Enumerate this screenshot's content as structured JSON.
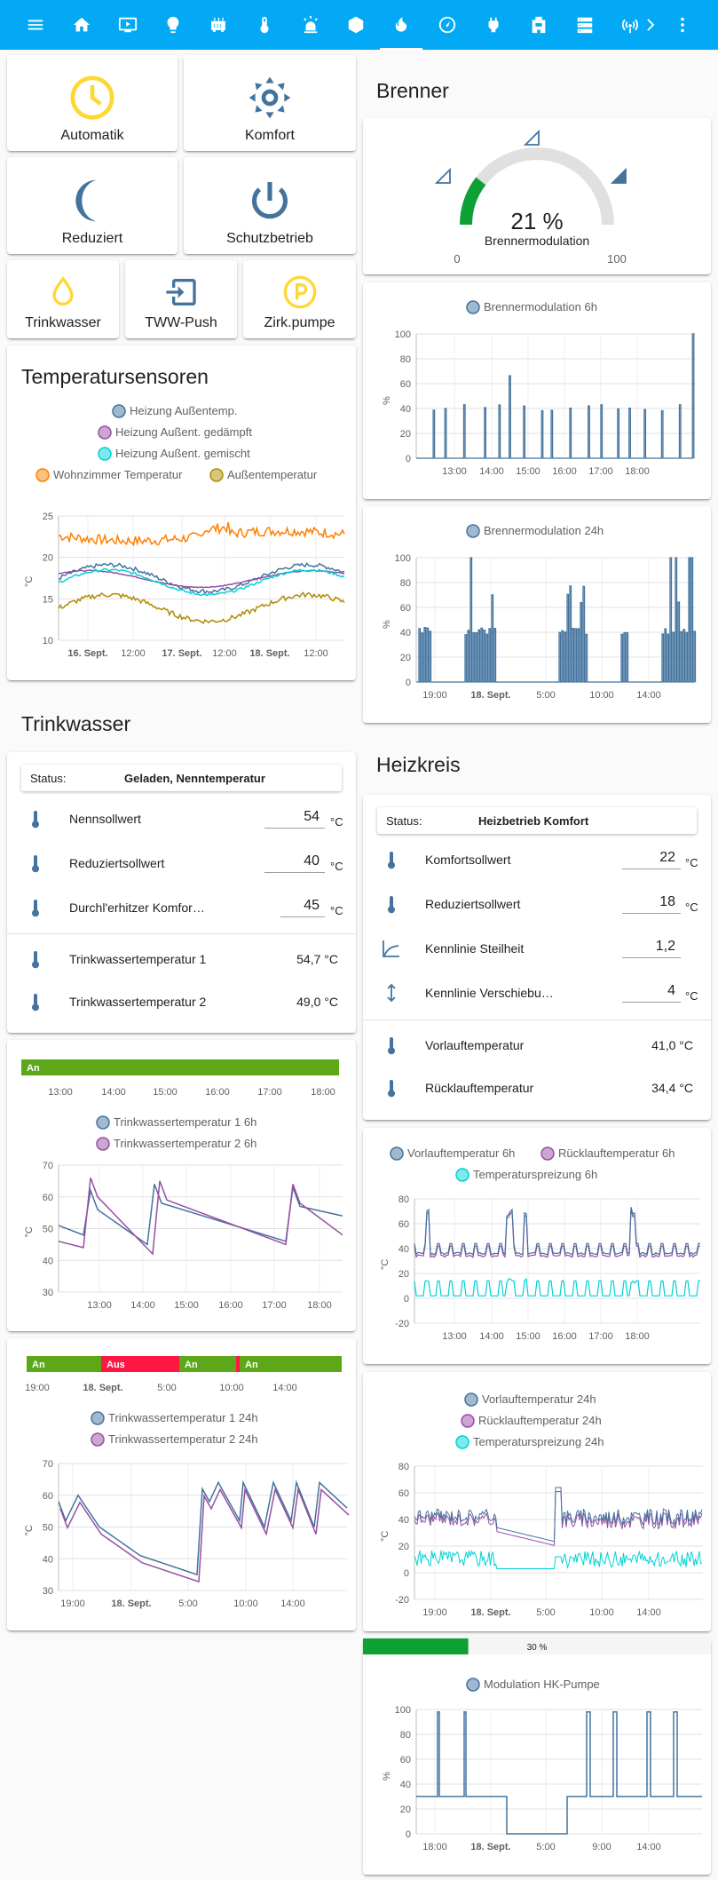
{
  "topbar": {
    "icons": [
      "menu-icon",
      "home-icon",
      "tv-icon",
      "lightbulb-icon",
      "radiator-icon",
      "thermometer-icon",
      "alarm-light-icon",
      "cube-icon",
      "fire-icon",
      "gauge-icon",
      "power-plug-icon",
      "water-pump-icon",
      "server-icon",
      "antenna-icon",
      "chevron-right-icon",
      "more-vert-icon"
    ],
    "accent": "#03a9f4"
  },
  "modes": [
    {
      "label": "Automatik",
      "icon": "clock-icon",
      "color": "#fdd835"
    },
    {
      "label": "Komfort",
      "icon": "sun-icon",
      "color": "#44739e"
    },
    {
      "label": "Reduziert",
      "icon": "moon-icon",
      "color": "#44739e"
    },
    {
      "label": "Schutzbetrieb",
      "icon": "power-icon",
      "color": "#44739e"
    }
  ],
  "water_buttons": [
    {
      "label": "Trinkwasser",
      "icon": "water-drop-icon"
    },
    {
      "label": "TWW-Push",
      "icon": "import-icon"
    },
    {
      "label": "Zirk.pumpe",
      "icon": "parking-icon"
    }
  ],
  "temp_sensors": {
    "title": "Temperatursensoren",
    "legend": [
      "Heizung Außentemp.",
      "Heizung Außent. gedämpft",
      "Heizung Außent. gemischt",
      "Wohnzimmer Temperatur",
      "Außentemperatur"
    ],
    "ylabel": "°C",
    "yticks": [
      "25",
      "20",
      "15",
      "10"
    ],
    "xticks": [
      "16. Sept.",
      "12:00",
      "17. Sept.",
      "12:00",
      "18. Sept.",
      "12:00"
    ]
  },
  "brenner": {
    "title": "Brenner",
    "gauge_value": "21 %",
    "gauge_label": "Brennermodulation",
    "gauge_min": "0",
    "gauge_max": "100",
    "value": 21
  },
  "mod6h": {
    "legend": "Brennermodulation 6h",
    "ylabel": "%",
    "yticks": [
      "100",
      "80",
      "60",
      "40",
      "20",
      "0"
    ],
    "xticks": [
      "13:00",
      "14:00",
      "15:00",
      "16:00",
      "17:00",
      "18:00"
    ]
  },
  "mod24h": {
    "legend": "Brennermodulation 24h",
    "ylabel": "%",
    "yticks": [
      "100",
      "80",
      "60",
      "40",
      "20",
      "0"
    ],
    "xticks": [
      "19:00",
      "18. Sept.",
      "5:00",
      "10:00",
      "14:00"
    ]
  },
  "trinkwasser": {
    "title": "Trinkwasser",
    "status_label": "Status:",
    "status_value": "Geladen, Nenntemperatur",
    "rows": [
      {
        "name": "Nennsollwert",
        "value": "54",
        "unit": "°C"
      },
      {
        "name": "Reduziertsollwert",
        "value": "40",
        "unit": "°C"
      },
      {
        "name": "Durchl'erhitzer Komfor…",
        "value": "45",
        "unit": "°C"
      }
    ],
    "sensors": [
      {
        "name": "Trinkwassertemperatur 1",
        "value": "54,7 °C"
      },
      {
        "name": "Trinkwassertemperatur 2",
        "value": "49,0 °C"
      }
    ]
  },
  "tw6h": {
    "timeline_label": "An",
    "tl_xticks": [
      "13:00",
      "14:00",
      "15:00",
      "16:00",
      "17:00",
      "18:00"
    ],
    "legend": [
      "Trinkwassertemperatur 1 6h",
      "Trinkwassertemperatur 2 6h"
    ],
    "ylabel": "°C",
    "yticks": [
      "70",
      "60",
      "50",
      "40",
      "30"
    ],
    "xticks": [
      "13:00",
      "14:00",
      "15:00",
      "16:00",
      "17:00",
      "18:00"
    ]
  },
  "tw24h": {
    "timeline_labels": [
      "An",
      "Aus",
      "An",
      "An"
    ],
    "tl_xticks": [
      "19:00",
      "18. Sept.",
      "5:00",
      "10:00",
      "14:00"
    ],
    "legend": [
      "Trinkwassertemperatur 1 24h",
      "Trinkwassertemperatur 2 24h"
    ],
    "ylabel": "°C",
    "yticks": [
      "70",
      "60",
      "50",
      "40",
      "30"
    ],
    "xticks": [
      "19:00",
      "18. Sept.",
      "5:00",
      "10:00",
      "14:00"
    ]
  },
  "heizkreis": {
    "title": "Heizkreis",
    "status_label": "Status:",
    "status_value": "Heizbetrieb Komfort",
    "rows": [
      {
        "name": "Komfortsollwert",
        "value": "22",
        "unit": "°C"
      },
      {
        "name": "Reduziertsollwert",
        "value": "18",
        "unit": "°C"
      },
      {
        "name": "Kennlinie Steilheit",
        "value": "1,2",
        "unit": ""
      },
      {
        "name": "Kennlinie Verschiebu…",
        "value": "4",
        "unit": "°C"
      }
    ],
    "sensors": [
      {
        "name": "Vorlauftemperatur",
        "value": "41,0 °C"
      },
      {
        "name": "Rücklauftemperatur",
        "value": "34,4 °C"
      }
    ]
  },
  "hk6h": {
    "legend": [
      "Vorlauftemperatur 6h",
      "Rücklauftemperatur 6h",
      "Temperaturspreizung 6h"
    ],
    "ylabel": "°C",
    "yticks": [
      "80",
      "60",
      "40",
      "20",
      "0",
      "-20"
    ],
    "xticks": [
      "13:00",
      "14:00",
      "15:00",
      "16:00",
      "17:00",
      "18:00"
    ]
  },
  "hk24h": {
    "legend": [
      "Vorlauftemperatur 24h",
      "Rücklauftemperatur 24h",
      "Temperaturspreizung 24h"
    ],
    "ylabel": "°C",
    "yticks": [
      "80",
      "60",
      "40",
      "20",
      "0",
      "-20"
    ],
    "xticks": [
      "19:00",
      "18. Sept.",
      "5:00",
      "10:00",
      "14:00"
    ]
  },
  "pump": {
    "bar_label": "30 %",
    "value": 30,
    "legend": "Modulation HK-Pumpe",
    "ylabel": "%",
    "yticks": [
      "100",
      "80",
      "60",
      "40",
      "20",
      "0"
    ],
    "xticks": [
      "18:00",
      "18. Sept.",
      "5:00",
      "9:00",
      "14:00"
    ]
  },
  "colors": {
    "blue": "#44739e",
    "purple": "#984ea3",
    "cyan": "#00d2d5",
    "orange": "#ff7f00",
    "olive": "#af8d00",
    "green": "#5ca818",
    "red": "#ff1744",
    "gauge_green": "#0da035"
  }
}
